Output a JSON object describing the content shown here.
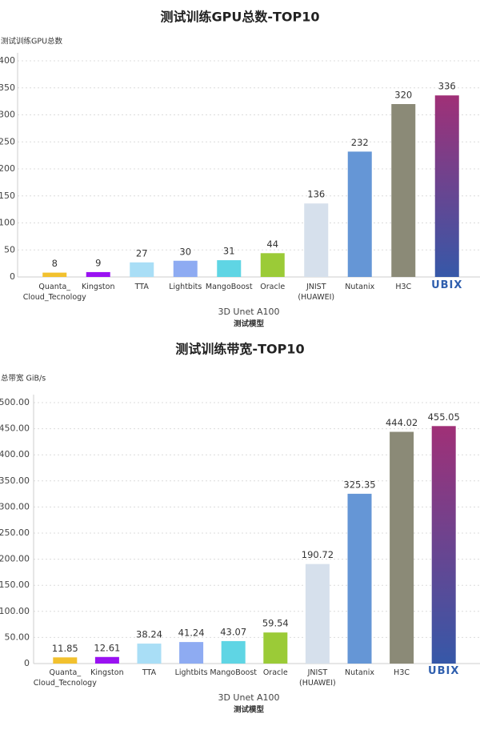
{
  "chart_data": [
    {
      "type": "bar",
      "title": "测试训练GPU总数-TOP10",
      "y_label": "测试训练GPU总数",
      "x_label": "3D Unet   A100",
      "x_sublabel": "测试模型",
      "categories": [
        "Quanta_\nCloud_Tecnology",
        "Kingston",
        "TTA",
        "Lightbits",
        "MangoBoost",
        "Oracle",
        "JNIST\n(HUAWEI)",
        "Nutanix",
        "H3C",
        "UBIX"
      ],
      "values": [
        8,
        9,
        27,
        30,
        31,
        44,
        136,
        232,
        320,
        336
      ],
      "colors": [
        "#f2c12e",
        "#9a12f2",
        "#a9def6",
        "#8eabf2",
        "#5fd5e4",
        "#9bcb37",
        "#d6e0ec",
        "#6596d6",
        "#8b8a77",
        [
          "#a03077",
          "#3658a8"
        ]
      ],
      "ylim": [
        0,
        400
      ],
      "yticks": [
        0,
        50,
        100,
        150,
        200,
        250,
        300,
        350,
        400
      ],
      "grid": true
    },
    {
      "type": "bar",
      "title": "测试训练带宽-TOP10",
      "y_label": "总带宽 GiB/s",
      "x_label": "3D Unet   A100",
      "x_sublabel": "测试模型",
      "categories": [
        "Quanta_\nCloud_Tecnology",
        "Kingston",
        "TTA",
        "Lightbits",
        "MangoBoost",
        "Oracle",
        "JNIST\n(HUAWEI)",
        "Nutanix",
        "H3C",
        "UBIX"
      ],
      "values": [
        11.85,
        12.61,
        38.24,
        41.24,
        43.07,
        59.54,
        190.72,
        325.35,
        444.02,
        455.05
      ],
      "colors": [
        "#f2c12e",
        "#9a12f2",
        "#a9def6",
        "#8eabf2",
        "#5fd5e4",
        "#9bcb37",
        "#d6e0ec",
        "#6596d6",
        "#8b8a77",
        [
          "#a03077",
          "#3658a8"
        ]
      ],
      "ylim": [
        0,
        500
      ],
      "yticks": [
        0,
        {
          "value": 50,
          "label": "50.00"
        },
        {
          "value": 100,
          "label": "100.00"
        },
        {
          "value": 150,
          "label": "150.00"
        },
        {
          "value": 200,
          "label": "200.00"
        },
        {
          "value": 250,
          "label": "250.00"
        },
        {
          "value": 300,
          "label": "300.00"
        },
        {
          "value": 350,
          "label": "350.00"
        },
        {
          "value": 400,
          "label": "400.00"
        },
        {
          "value": 450,
          "label": "450.00"
        },
        {
          "value": 500,
          "label": "500.00"
        }
      ],
      "grid": true
    }
  ]
}
